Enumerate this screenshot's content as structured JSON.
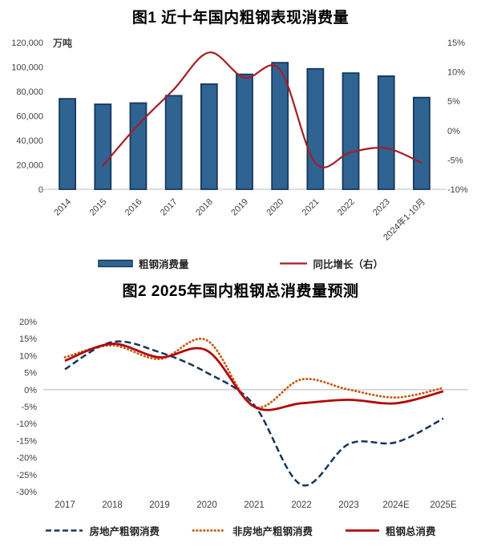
{
  "page": {
    "background": "#ffffff"
  },
  "figure1": {
    "title": "图1 近十年国内粗钢表现消费量"
  },
  "figure2": {
    "title": "图2 2025年国内粗钢总消费量预测"
  },
  "colors": {
    "bar_fill": "#2f6392",
    "bar_border": "#17375e",
    "growth_line": "#a51e23",
    "property_line": "#17365d",
    "non_property_line": "#c55a11",
    "total_line": "#b20808",
    "axis_text": "#404040",
    "baseline": "#bfbfbf",
    "gridline": "#c8c8c8"
  },
  "chart_data": [
    {
      "type": "bar",
      "title": "图1 近十年国内粗钢表现消费量",
      "categories": [
        "2014",
        "2015",
        "2016",
        "2017",
        "2018",
        "2019",
        "2020",
        "2021",
        "2022",
        "2023",
        "2024年1-10月"
      ],
      "left_axis": {
        "unit": "万吨",
        "min": 0,
        "max": 120000,
        "step": 20000,
        "tick_labels": [
          "120,000",
          "100,000",
          "80,000",
          "60,000",
          "40,000",
          "20,000",
          "0"
        ]
      },
      "right_axis": {
        "min": -10,
        "max": 15,
        "step": 5,
        "tick_labels": [
          "15%",
          "10%",
          "5%",
          "0%",
          "-5%",
          "-10%"
        ]
      },
      "series": [
        {
          "name": "粗钢消费量",
          "type": "bar",
          "axis": "left",
          "color": "#2f6392",
          "values": [
            74000,
            69500,
            70500,
            76500,
            86000,
            94000,
            103500,
            98500,
            95000,
            92500,
            75000
          ]
        },
        {
          "name": "同比增长（右）",
          "type": "line",
          "axis": "right",
          "color": "#a51e23",
          "values": [
            null,
            -6,
            1,
            7,
            13.3,
            9,
            10.4,
            -5.5,
            -3.7,
            -3,
            -5.5
          ]
        }
      ],
      "legend_position": "bottom",
      "grid": "baseline-only"
    },
    {
      "type": "line",
      "title": "图2 2025年国内粗钢总消费量预测",
      "categories": [
        "2017",
        "2018",
        "2019",
        "2020",
        "2021",
        "2022",
        "2023",
        "2024E",
        "2025E"
      ],
      "y_axis": {
        "min": -30,
        "max": 20,
        "step": 5,
        "tick_labels": [
          "20%",
          "15%",
          "10%",
          "5%",
          "0%",
          "-5%",
          "-10%",
          "-15%",
          "-20%",
          "-25%",
          "-30%"
        ]
      },
      "series": [
        {
          "name": "房地产粗钢消费",
          "style": "dashed",
          "color": "#17365d",
          "values": [
            6,
            14,
            11,
            5,
            -4.5,
            -28,
            -16,
            -15.5,
            -8.5
          ]
        },
        {
          "name": "非房地产粗钢消费",
          "style": "dotted",
          "color": "#c55a11",
          "values": [
            9.5,
            13,
            9,
            14.5,
            -5,
            3,
            0,
            -2.3,
            0.5
          ]
        },
        {
          "name": "粗钢总消费",
          "style": "solid",
          "color": "#b20808",
          "values": [
            8.5,
            13.5,
            9.5,
            11.5,
            -5,
            -4,
            -3,
            -4,
            -0.5
          ]
        }
      ],
      "legend_position": "bottom",
      "grid": "zero-line-only"
    }
  ]
}
